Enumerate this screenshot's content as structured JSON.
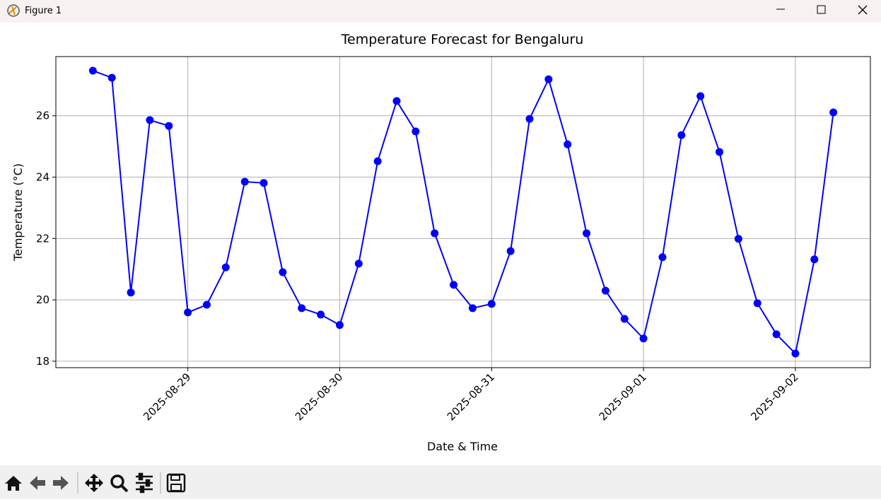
{
  "window": {
    "title": "Figure 1"
  },
  "chart_data": {
    "type": "line",
    "title": "Temperature Forecast for Bengaluru",
    "xlabel": "Date & Time",
    "ylabel": "Temperature (°C)",
    "x": [
      "2025-08-28T09:00",
      "2025-08-28T12:00",
      "2025-08-28T15:00",
      "2025-08-28T18:00",
      "2025-08-28T21:00",
      "2025-08-29T00:00",
      "2025-08-29T03:00",
      "2025-08-29T06:00",
      "2025-08-29T09:00",
      "2025-08-29T12:00",
      "2025-08-29T15:00",
      "2025-08-29T18:00",
      "2025-08-29T21:00",
      "2025-08-30T00:00",
      "2025-08-30T03:00",
      "2025-08-30T06:00",
      "2025-08-30T09:00",
      "2025-08-30T12:00",
      "2025-08-30T15:00",
      "2025-08-30T18:00",
      "2025-08-30T21:00",
      "2025-08-31T00:00",
      "2025-08-31T03:00",
      "2025-08-31T06:00",
      "2025-08-31T09:00",
      "2025-08-31T12:00",
      "2025-08-31T15:00",
      "2025-08-31T18:00",
      "2025-08-31T21:00",
      "2025-09-01T00:00",
      "2025-09-01T03:00",
      "2025-09-01T06:00",
      "2025-09-01T09:00",
      "2025-09-01T12:00",
      "2025-09-01T15:00",
      "2025-09-01T18:00",
      "2025-09-01T21:00",
      "2025-09-02T00:00",
      "2025-09-02T03:00",
      "2025-09-02T06:00"
    ],
    "series": [
      {
        "color": "#0000ff",
        "values": [
          27.47,
          27.24,
          20.24,
          25.86,
          25.67,
          19.59,
          19.84,
          21.06,
          23.85,
          23.81,
          20.9,
          19.73,
          19.52,
          19.18,
          21.18,
          24.52,
          26.48,
          25.49,
          22.17,
          20.49,
          19.73,
          19.87,
          21.59,
          25.9,
          27.19,
          25.07,
          22.17,
          20.3,
          19.38,
          18.74,
          21.39,
          25.37,
          26.64,
          24.82,
          21.99,
          19.89,
          18.88,
          18.25,
          21.32,
          26.11
        ]
      }
    ],
    "xlim": [
      "2025-08-28T03:09",
      "2025-09-02T11:51"
    ],
    "xticks": [
      "2025-08-29",
      "2025-08-30",
      "2025-08-31",
      "2025-09-01",
      "2025-09-02"
    ],
    "ylim": [
      17.79,
      27.93
    ],
    "yticks": [
      18,
      20,
      22,
      24,
      26
    ],
    "grid": true
  }
}
